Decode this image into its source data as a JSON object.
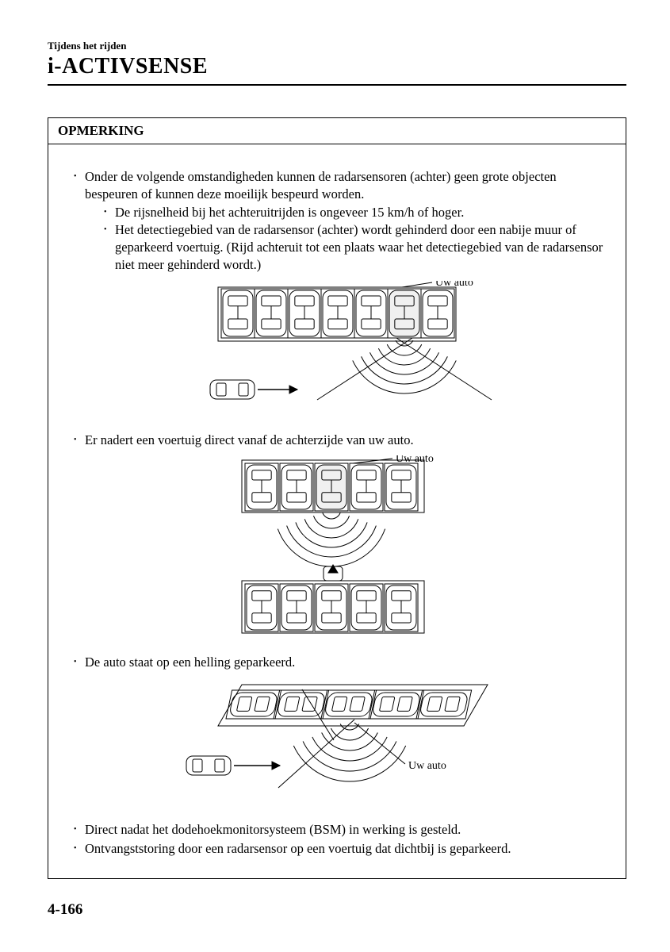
{
  "header": {
    "chapter": "Tijdens het rijden",
    "title": "i-ACTIVSENSE"
  },
  "notice": {
    "label": "OPMERKING",
    "intro": "Onder de volgende omstandigheden kunnen de radarsensoren (achter) geen grote objecten bespeuren of kunnen deze moeilijk bespeurd worden.",
    "sub_items": [
      "De rijsnelheid bij het achteruitrijden is ongeveer 15 km/h of hoger.",
      "Het detectiegebied van de radarsensor (achter) wordt gehinderd door een nabije muur of geparkeerd voertuig. (Rijd achteruit tot een plaats waar het detectiegebied van de radarsensor niet meer gehinderd wordt.)"
    ],
    "item_rear": "Er nadert een voertuig direct vanaf de achterzijde van uw auto.",
    "item_slope": "De auto staat op een helling geparkeerd.",
    "item_bsm": "Direct nadat het dodehoekmonitorsysteem (BSM) in werking is gesteld.",
    "item_interference": "Ontvangststoring door een radarsensor op een voertuig dat dichtbij is geparkeerd.",
    "label_own_car": "Uw auto"
  },
  "diagrams": {
    "d1": {
      "cars_in_row": 7,
      "own_index": 5,
      "car_w": 38,
      "car_h": 62,
      "row_gap": 4
    },
    "d2": {
      "cars_in_row": 5,
      "own_index": 2,
      "car_w": 38,
      "car_h": 62
    },
    "d3": {
      "cars_in_row": 5,
      "own_index": 2,
      "car_w": 56,
      "car_h": 30
    }
  },
  "style": {
    "stroke": "#000000",
    "stroke_w": 1,
    "fill": "#ffffff",
    "font": "Times New Roman"
  },
  "page_number": "4-166"
}
